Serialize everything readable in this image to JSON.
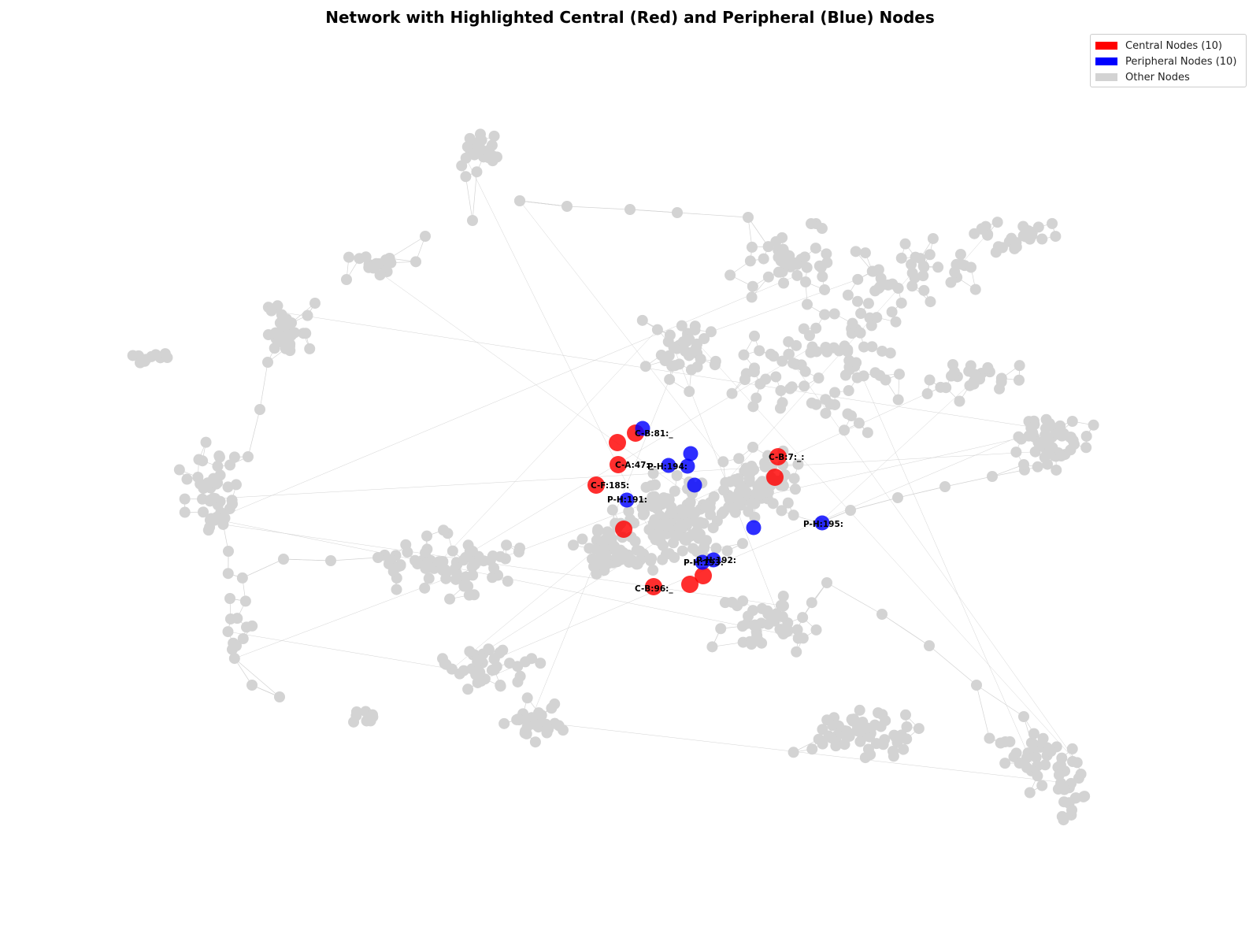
{
  "title": "Network with Highlighted Central (Red) and Peripheral (Blue) Nodes",
  "legend": [
    {
      "label": "Central Nodes (10)",
      "color": "#ff0000"
    },
    {
      "label": "Peripheral Nodes (10)",
      "color": "#0000ff"
    },
    {
      "label": "Other Nodes",
      "color": "#d3d3d3"
    }
  ],
  "colors": {
    "central": "#ff0000",
    "peripheral": "#0000ff",
    "other": "#d3d3d3",
    "edge": "#d3d3d3"
  },
  "labels": {
    "central": [
      "C-B:81:_",
      "C-A:47:_",
      "C-F:185:",
      "C-B:7:_:",
      "C-B:96:_"
    ],
    "peripheral": [
      "P-H:194:",
      "P-H:191:",
      "P-H:195:",
      "P-H:192:",
      "P-H:193:"
    ]
  }
}
